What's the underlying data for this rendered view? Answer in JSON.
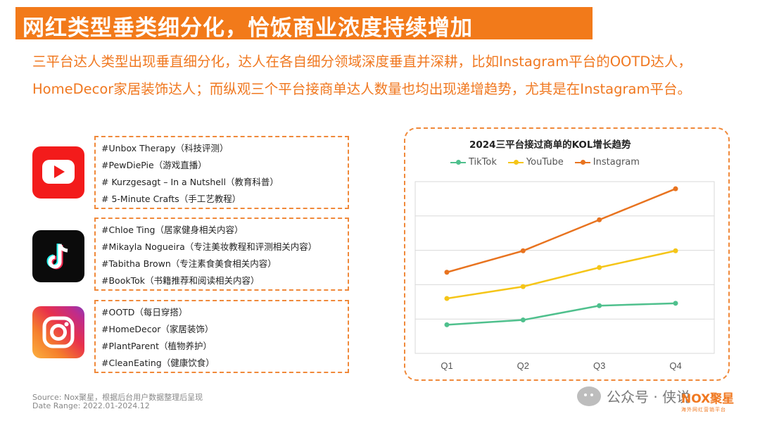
{
  "header": {
    "title": "网红类型垂类细分化，恰饭商业浓度持续增加"
  },
  "intro": "三平台达人类型出现垂直细分化，达人在各自细分领域深度垂直并深耕，比如Instagram平台的OOTD达人，HomeDecor家居装饰达人；而纵观三个平台接商单达人数量也均出现递增趋势，尤其是在Instagram平台。",
  "platforms": [
    {
      "icon": "youtube-icon",
      "items": [
        "#Unbox Therapy（科技评测）",
        "#PewDiePie（游戏直播）",
        "# Kurzgesagt – In a Nutshell（教育科普）",
        "# 5-Minute Crafts（手工艺教程）"
      ]
    },
    {
      "icon": "tiktok-icon",
      "items": [
        "#Chloe Ting（居家健身相关内容）",
        "#Mikayla Nogueira（专注美妆教程和评测相关内容）",
        "#Tabitha Brown（专注素食美食相关内容）",
        "#BookTok（书籍推荐和阅读相关内容）"
      ]
    },
    {
      "icon": "instagram-icon",
      "items": [
        "#OOTD（每日穿搭）",
        "#HomeDecor（家居装饰）",
        "#PlantParent（植物养护）",
        "#CleanEating（健康饮食）"
      ]
    }
  ],
  "chart_data": {
    "type": "line",
    "title": "2024三平台接过商单的KOL增长趋势",
    "categories": [
      "Q1",
      "Q2",
      "Q3",
      "Q4"
    ],
    "ylim": [
      0,
      6
    ],
    "grid": true,
    "legend_position": "top",
    "series": [
      {
        "name": "TikTok",
        "color": "#4fc08d",
        "values": [
          1.2,
          1.4,
          2.0,
          2.1
        ]
      },
      {
        "name": "YouTube",
        "color": "#f5c518",
        "values": [
          2.3,
          2.8,
          3.6,
          4.3
        ]
      },
      {
        "name": "Instagram",
        "color": "#e8731f",
        "values": [
          3.4,
          4.3,
          5.6,
          6.9
        ]
      }
    ]
  },
  "footer": {
    "source": "Source:    Nox聚星，根据后台用户数据整理后呈现",
    "range": "Date Range:  2022.01-2024.12",
    "wechat": "公众号 · 侠说",
    "brand": "NOX聚星",
    "brand_tag": "海外网红营销平台"
  }
}
